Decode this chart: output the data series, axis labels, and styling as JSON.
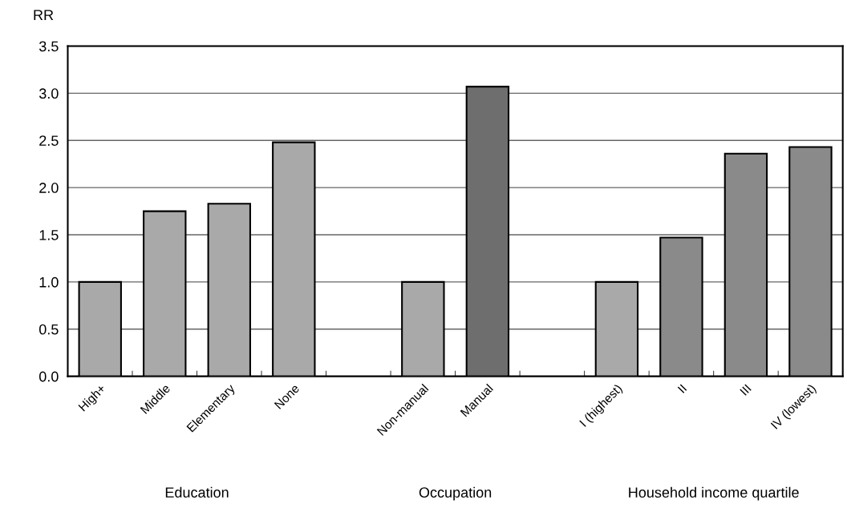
{
  "chart_data": {
    "type": "bar",
    "ylabel": "RR",
    "categories": [
      "High+",
      "Middle",
      "Elementary",
      "None",
      null,
      "Non-manual",
      "Manual",
      null,
      "I (highest)",
      "II",
      "III",
      "IV (lowest)"
    ],
    "values": [
      1.0,
      1.75,
      1.83,
      2.48,
      null,
      1.0,
      3.07,
      null,
      1.0,
      1.47,
      2.36,
      2.43
    ],
    "colors": [
      "#a9a9a9",
      "#a9a9a9",
      "#a9a9a9",
      "#a9a9a9",
      "#ffffff",
      "#a9a9a9",
      "#6e6e6e",
      "#ffffff",
      "#a9a9a9",
      "#8a8a8a",
      "#8a8a8a",
      "#8a8a8a"
    ],
    "ylim": [
      0,
      3.5
    ],
    "yticks": [
      {
        "value": 0,
        "label": "0.0"
      },
      0.5,
      {
        "value": 1,
        "label": "1.0"
      },
      1.5,
      {
        "value": 2,
        "label": "2.0"
      },
      2.5,
      {
        "value": 3,
        "label": "3.0"
      },
      3.5
    ],
    "grid": "y",
    "annotations": [
      "Education",
      "Occupation",
      "Household income quartile"
    ]
  }
}
